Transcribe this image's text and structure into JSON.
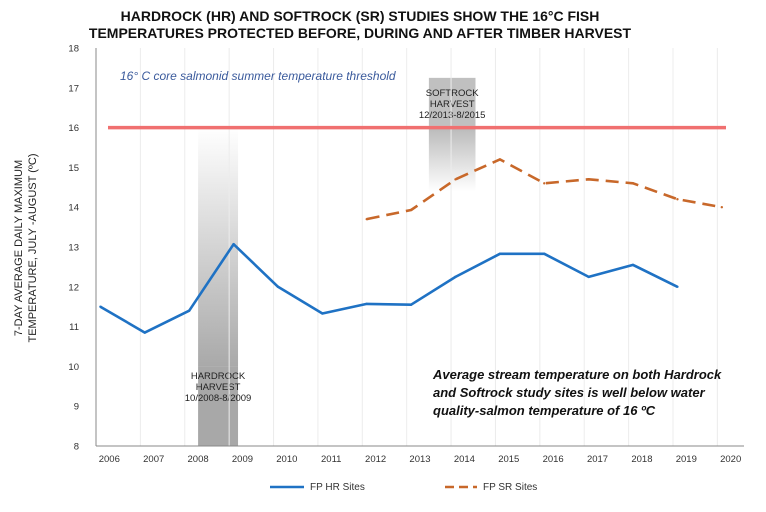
{
  "chart_data": {
    "type": "line",
    "title_lines": [
      "HARDROCK (HR) AND SOFTROCK (SR) STUDIES SHOW THE 16°C FISH",
      "TEMPERATURES PROTECTED BEFORE, DURING AND AFTER TIMBER HARVEST"
    ],
    "ylabel_lines": [
      "7-DAY AVERAGE DAILY MAXIMUM",
      "TEMPERATURE, JULY -AUGUST (ºC)"
    ],
    "xlabel": "",
    "ylim": [
      8,
      18
    ],
    "y_ticks": [
      "8",
      "9",
      "10",
      "11",
      "12",
      "13",
      "14",
      "15",
      "16",
      "17",
      "18"
    ],
    "x_ticks": [
      "2006",
      "2007",
      "2008",
      "2009",
      "2010",
      "2011",
      "2012",
      "2013",
      "2014",
      "2015",
      "2016",
      "2017",
      "2018",
      "2019",
      "2020"
    ],
    "grid": "vertical",
    "threshold": {
      "value": 16,
      "label": "16° C core salmonid summer temperature threshold",
      "color": "#f07070",
      "label_color": "#3a5a9c"
    },
    "harvest_bands": [
      {
        "id": "hardrock",
        "start": 2008.0,
        "end": 2008.9,
        "label_lines": [
          "HARDROCK",
          "HARVEST",
          "10/2008-8/2009"
        ]
      },
      {
        "id": "softrock",
        "start": 2013.2,
        "end": 2014.25,
        "label_lines": [
          "SOFTROCK",
          "HARVEST",
          "12/2013-8/2015"
        ]
      }
    ],
    "annotation_lines": [
      "Average stream temperature on  both Hardrock",
      "and Softrock study sites is well below water",
      "quality-salmon temperature of 16 ºC"
    ],
    "series": [
      {
        "name": "FP HR Sites",
        "color": "#1f72c4",
        "dash": "solid",
        "x": [
          2005.8,
          2006.8,
          2007.8,
          2008.8,
          2009.8,
          2010.8,
          2011.8,
          2012.8,
          2013.8,
          2014.8,
          2015.8,
          2016.8,
          2017.8,
          2018.8
        ],
        "values": [
          11.5,
          10.85,
          11.4,
          13.07,
          12.0,
          11.33,
          11.57,
          11.55,
          12.25,
          12.83,
          12.83,
          12.25,
          12.55,
          12.0
        ]
      },
      {
        "name": "FP SR Sites",
        "color": "#c8682a",
        "dash": "dashed",
        "x": [
          2011.8,
          2012.8,
          2013.8,
          2014.8,
          2015.8,
          2016.8,
          2017.8,
          2018.8,
          2019.8
        ],
        "values": [
          13.7,
          13.93,
          14.7,
          15.2,
          14.6,
          14.7,
          14.6,
          14.2,
          14.0
        ]
      }
    ],
    "legend_position": "bottom"
  }
}
